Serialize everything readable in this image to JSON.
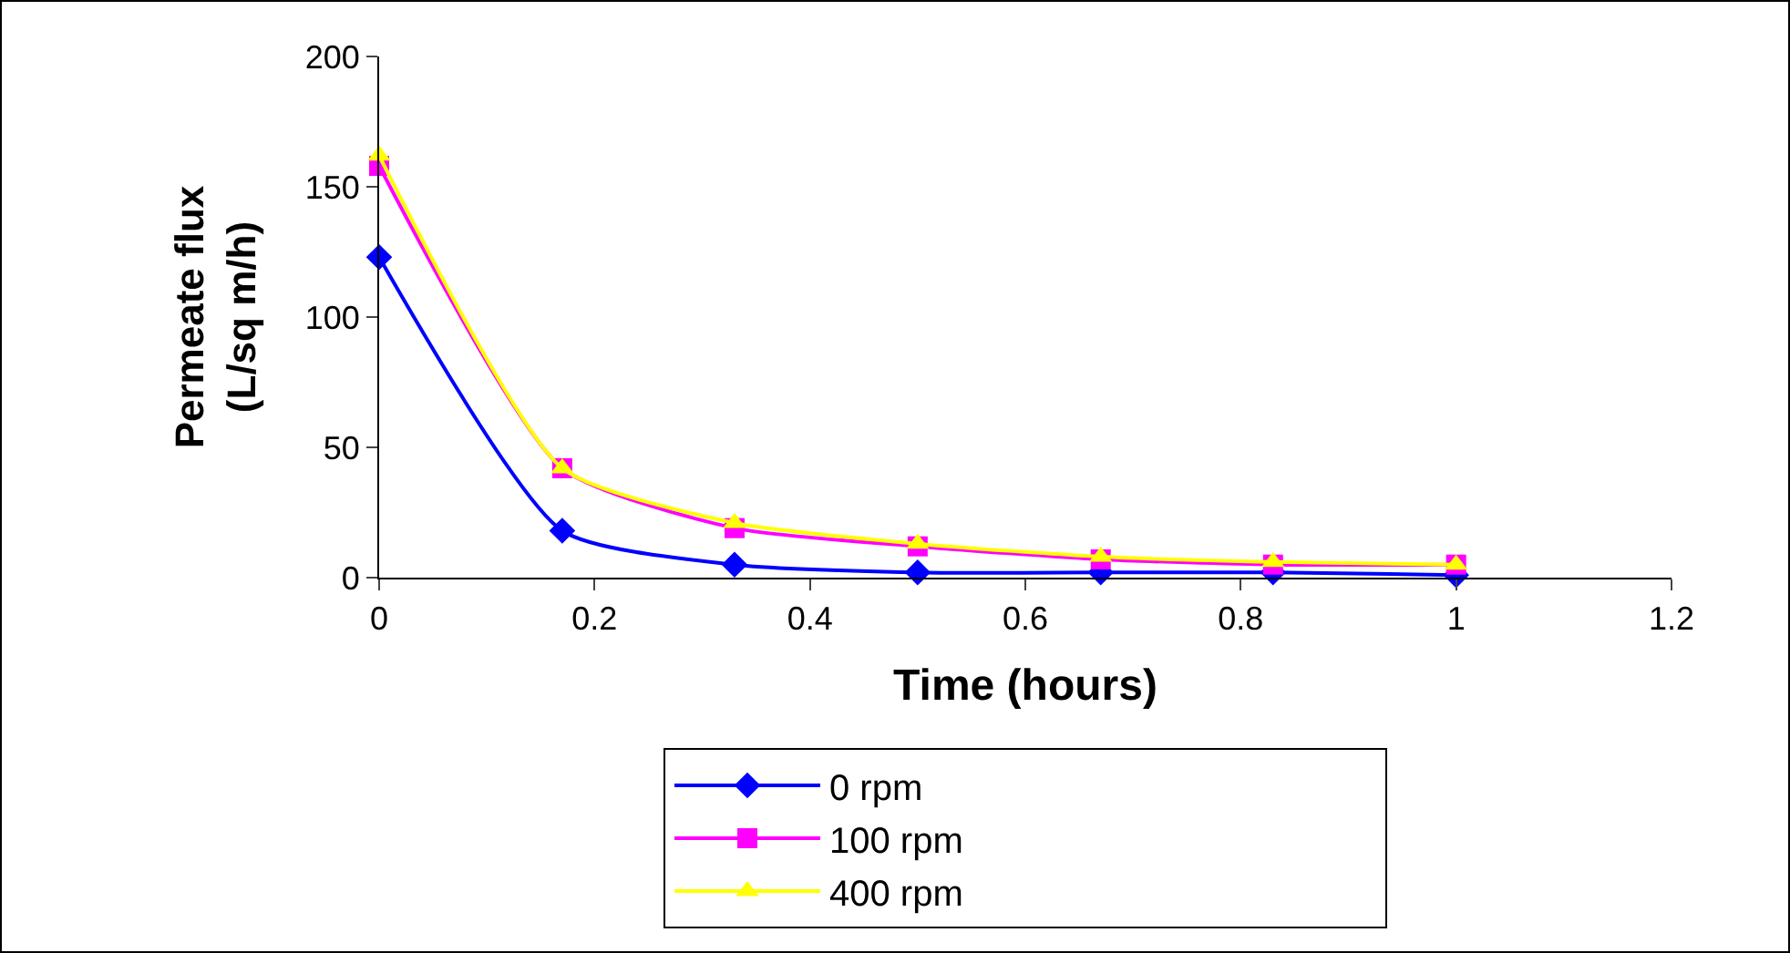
{
  "chart_data": {
    "type": "line",
    "xlabel": "Time (hours)",
    "ylabel": "Permeate flux\n(L/sq m/h)",
    "x": [
      0,
      0.17,
      0.33,
      0.5,
      0.67,
      0.83,
      1
    ],
    "series": [
      {
        "name": "0 rpm",
        "color": "#0000ff",
        "marker": "diamond",
        "values": [
          123,
          18,
          5,
          2,
          2,
          2,
          1
        ]
      },
      {
        "name": "100 rpm",
        "color": "#ff00ff",
        "marker": "square",
        "values": [
          158,
          42,
          19,
          12,
          7,
          5,
          5
        ]
      },
      {
        "name": "400 rpm",
        "color": "#ffff00",
        "marker": "triangle",
        "values": [
          162,
          42,
          21,
          13,
          8,
          6,
          5
        ]
      }
    ],
    "xlim": [
      0,
      1.2
    ],
    "xticks": [
      0,
      0.2,
      0.4,
      0.6,
      0.8,
      1,
      1.2
    ],
    "ylim": [
      0,
      200
    ],
    "yticks": [
      0,
      50,
      100,
      150,
      200
    ],
    "grid": false,
    "legend": "bottom",
    "line_style": "solid"
  }
}
